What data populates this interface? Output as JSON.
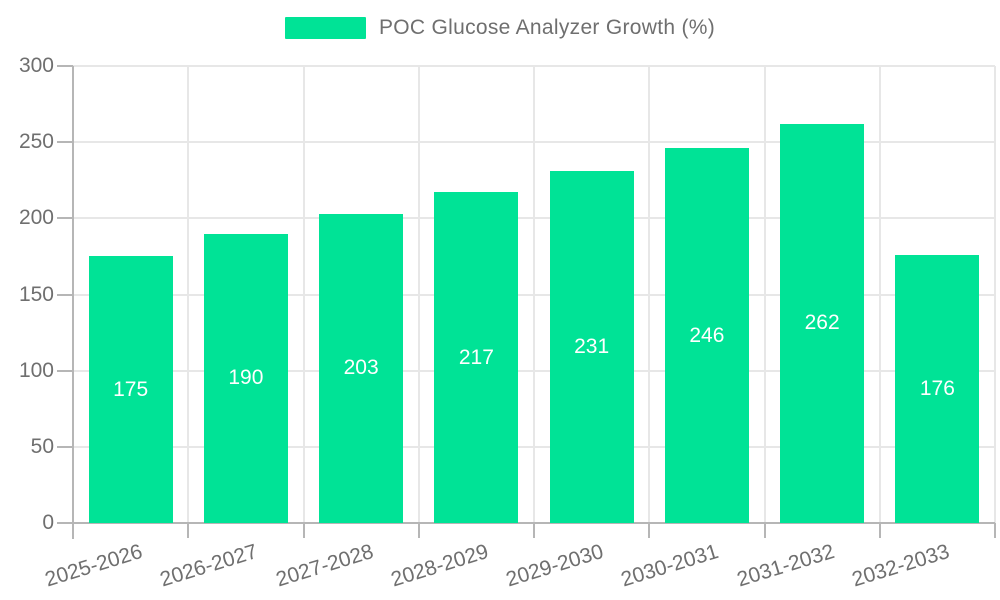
{
  "chart_data": {
    "type": "bar",
    "categories": [
      "2025-2026",
      "2026-2027",
      "2027-2028",
      "2028-2029",
      "2029-2030",
      "2030-2031",
      "2031-2032",
      "2032-2033"
    ],
    "series": [
      {
        "name": "POC Glucose Analyzer Growth (%)",
        "color": "#00E396",
        "values": [
          175,
          190,
          203,
          217,
          231,
          246,
          262,
          176
        ]
      }
    ],
    "xlabel": "",
    "ylabel": "",
    "ylim": [
      0,
      300
    ],
    "yticks": [
      0,
      50,
      100,
      150,
      200,
      250,
      300
    ],
    "grid": true,
    "legend_position": "top",
    "x_tick_rotation_deg": -17,
    "value_labels": {
      "show": true,
      "position": "center",
      "color": "#ffffff"
    },
    "colors": {
      "background": "#ffffff",
      "axis": "#b6b6b6",
      "grid": "#e7e7e7",
      "tick_text": "#6f6f6f"
    }
  }
}
